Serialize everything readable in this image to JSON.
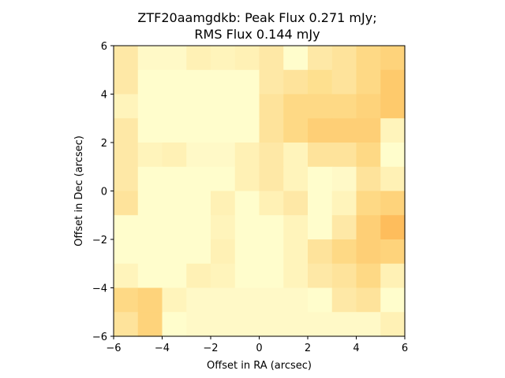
{
  "chart_data": {
    "type": "heatmap",
    "title_line1": "ZTF20aamgdkb: Peak Flux 0.271 mJy;",
    "title_line2": "RMS Flux 0.144 mJy",
    "xlabel": "Offset in RA (arcsec)",
    "ylabel": "Offset in Dec (arcsec)",
    "xlim": [
      -6,
      6
    ],
    "ylim": [
      -6,
      6
    ],
    "xticks": [
      -6,
      -4,
      -2,
      0,
      2,
      4,
      6
    ],
    "yticks": [
      -6,
      -4,
      -2,
      0,
      2,
      4,
      6
    ],
    "xtick_labels": [
      "−6",
      "−4",
      "−2",
      "0",
      "2",
      "4",
      "6"
    ],
    "ytick_labels": [
      "−6",
      "−4",
      "−2",
      "0",
      "2",
      "4",
      "6"
    ],
    "grid_rows_top_to_bottom": [
      [
        "#fee8a6",
        "#fff9c7",
        "#fff9c7",
        "#fff1b5",
        "#fff4bb",
        "#fff1b5",
        "#fee8a6",
        "#fffdcc",
        "#fee8a6",
        "#fee39b",
        "#fed985",
        "#fed37b"
      ],
      [
        "#fee8a6",
        "#fffdcc",
        "#fffdcc",
        "#fffdcc",
        "#fffdcc",
        "#fffdcc",
        "#fee8a6",
        "#fee39b",
        "#fee08f",
        "#fee39b",
        "#fed985",
        "#feca6c"
      ],
      [
        "#fff4bb",
        "#fffdcc",
        "#fffdcc",
        "#fffdcc",
        "#fffdcc",
        "#fffdcc",
        "#fee39b",
        "#fed985",
        "#fed985",
        "#fed985",
        "#fed37b",
        "#feca6c"
      ],
      [
        "#fee8a6",
        "#fffdcc",
        "#fffdcc",
        "#fffdcc",
        "#fffdcc",
        "#fffdcc",
        "#fee39b",
        "#fed985",
        "#fecf76",
        "#fecf76",
        "#fecf76",
        "#fff4bb"
      ],
      [
        "#fee8a6",
        "#fff4bb",
        "#fff1b5",
        "#fff9c7",
        "#fff9c7",
        "#fff1b5",
        "#fee8a6",
        "#fff4bb",
        "#fee39b",
        "#fee39b",
        "#fed985",
        "#fffdcc"
      ],
      [
        "#fee8a6",
        "#fffdcc",
        "#fffdcc",
        "#fffdcc",
        "#fffdcc",
        "#fff1b5",
        "#fee8a6",
        "#fff4bb",
        "#fffdcc",
        "#fff9c7",
        "#fee39b",
        "#fff1b5"
      ],
      [
        "#fee39b",
        "#fffdcc",
        "#fffdcc",
        "#fffdcc",
        "#fff1b5",
        "#fffdcc",
        "#fff1b5",
        "#fee8a6",
        "#fffdcc",
        "#fff4bb",
        "#fed985",
        "#fed37b"
      ],
      [
        "#fffdcc",
        "#fffdcc",
        "#fffdcc",
        "#fffdcc",
        "#fff4bb",
        "#fffdcc",
        "#fffdcc",
        "#fff4bb",
        "#fffdcc",
        "#fee8a6",
        "#fecf76",
        "#febd5c"
      ],
      [
        "#fffdcc",
        "#fffdcc",
        "#fffdcc",
        "#fffdcc",
        "#fff1b5",
        "#fffdcc",
        "#fffdcc",
        "#fff4bb",
        "#fee39b",
        "#fed985",
        "#fecf76",
        "#fed37b"
      ],
      [
        "#fff4bb",
        "#fffdcc",
        "#fffdcc",
        "#fff1b5",
        "#fff4bb",
        "#fffdcc",
        "#fffdcc",
        "#fff4bb",
        "#fee8a6",
        "#fee39b",
        "#fed985",
        "#fff1b5"
      ],
      [
        "#fed985",
        "#fed37b",
        "#fff4bb",
        "#fff9c7",
        "#fff9c7",
        "#fff9c7",
        "#fff9c7",
        "#fff9c7",
        "#fffdcc",
        "#fee8a6",
        "#fee39b",
        "#fffdcc"
      ],
      [
        "#fee39b",
        "#fed37b",
        "#fffdcc",
        "#fff9c7",
        "#fff9c7",
        "#fff9c7",
        "#fff9c7",
        "#fff9c7",
        "#fff9c7",
        "#fff9c7",
        "#fff9c7",
        "#fff1b5"
      ]
    ]
  }
}
